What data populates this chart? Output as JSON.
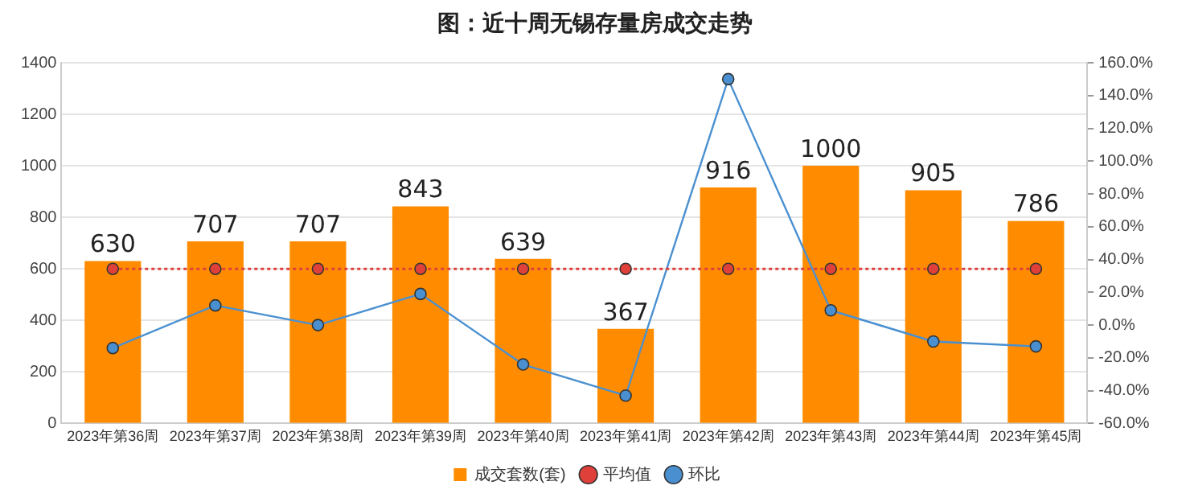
{
  "chart_data": {
    "type": "bar",
    "title": "图：近十周无锡存量房成交走势",
    "categories": [
      "2023年第36周",
      "2023年第37周",
      "2023年第38周",
      "2023年第39周",
      "2023年第40周",
      "2023年第41周",
      "2023年第42周",
      "2023年第43周",
      "2023年第44周",
      "2023年第45周"
    ],
    "series": [
      {
        "name": "成交套数(套)",
        "color": "#ff8c00",
        "values": [
          630,
          707,
          707,
          843,
          639,
          367,
          916,
          1000,
          905,
          786
        ],
        "value_labels": [
          "630",
          "707",
          "707",
          "843",
          "639",
          "367",
          "916",
          "1000",
          "905",
          "786"
        ]
      },
      {
        "name": "平均值",
        "type": "line",
        "color": "#e0403a",
        "line_style": "dotted",
        "values": [
          600,
          600,
          600,
          600,
          600,
          600,
          600,
          600,
          600,
          600
        ]
      },
      {
        "name": "环比",
        "type": "line",
        "axis": "y2",
        "color": "#4a90d0",
        "line_style": "solid",
        "values": [
          -14,
          12,
          0,
          19,
          -24,
          -43,
          150,
          9,
          -10,
          -13
        ]
      }
    ],
    "ylim": [
      0,
      1400
    ],
    "yticks": [
      0,
      200,
      400,
      600,
      800,
      1000,
      1200,
      1400
    ],
    "y2lim": [
      -60,
      160
    ],
    "y2ticks": [
      {
        "value": -60,
        "label": "-60.0%"
      },
      {
        "value": -40,
        "label": "-40.0%"
      },
      {
        "value": -20,
        "label": "-20.0%"
      },
      {
        "value": 0,
        "label": "0.0%"
      },
      {
        "value": 20,
        "label": "20.0%"
      },
      {
        "value": 40,
        "label": "40.0%"
      },
      {
        "value": 60,
        "label": "60.0%"
      },
      {
        "value": 80,
        "label": "80.0%"
      },
      {
        "value": 100,
        "label": "100.0%"
      },
      {
        "value": 120,
        "label": "120.0%"
      },
      {
        "value": 140,
        "label": "140.0%"
      },
      {
        "value": 160,
        "label": "160.0%"
      }
    ],
    "grid": "y",
    "legend": "bottom",
    "marker": "circle"
  }
}
